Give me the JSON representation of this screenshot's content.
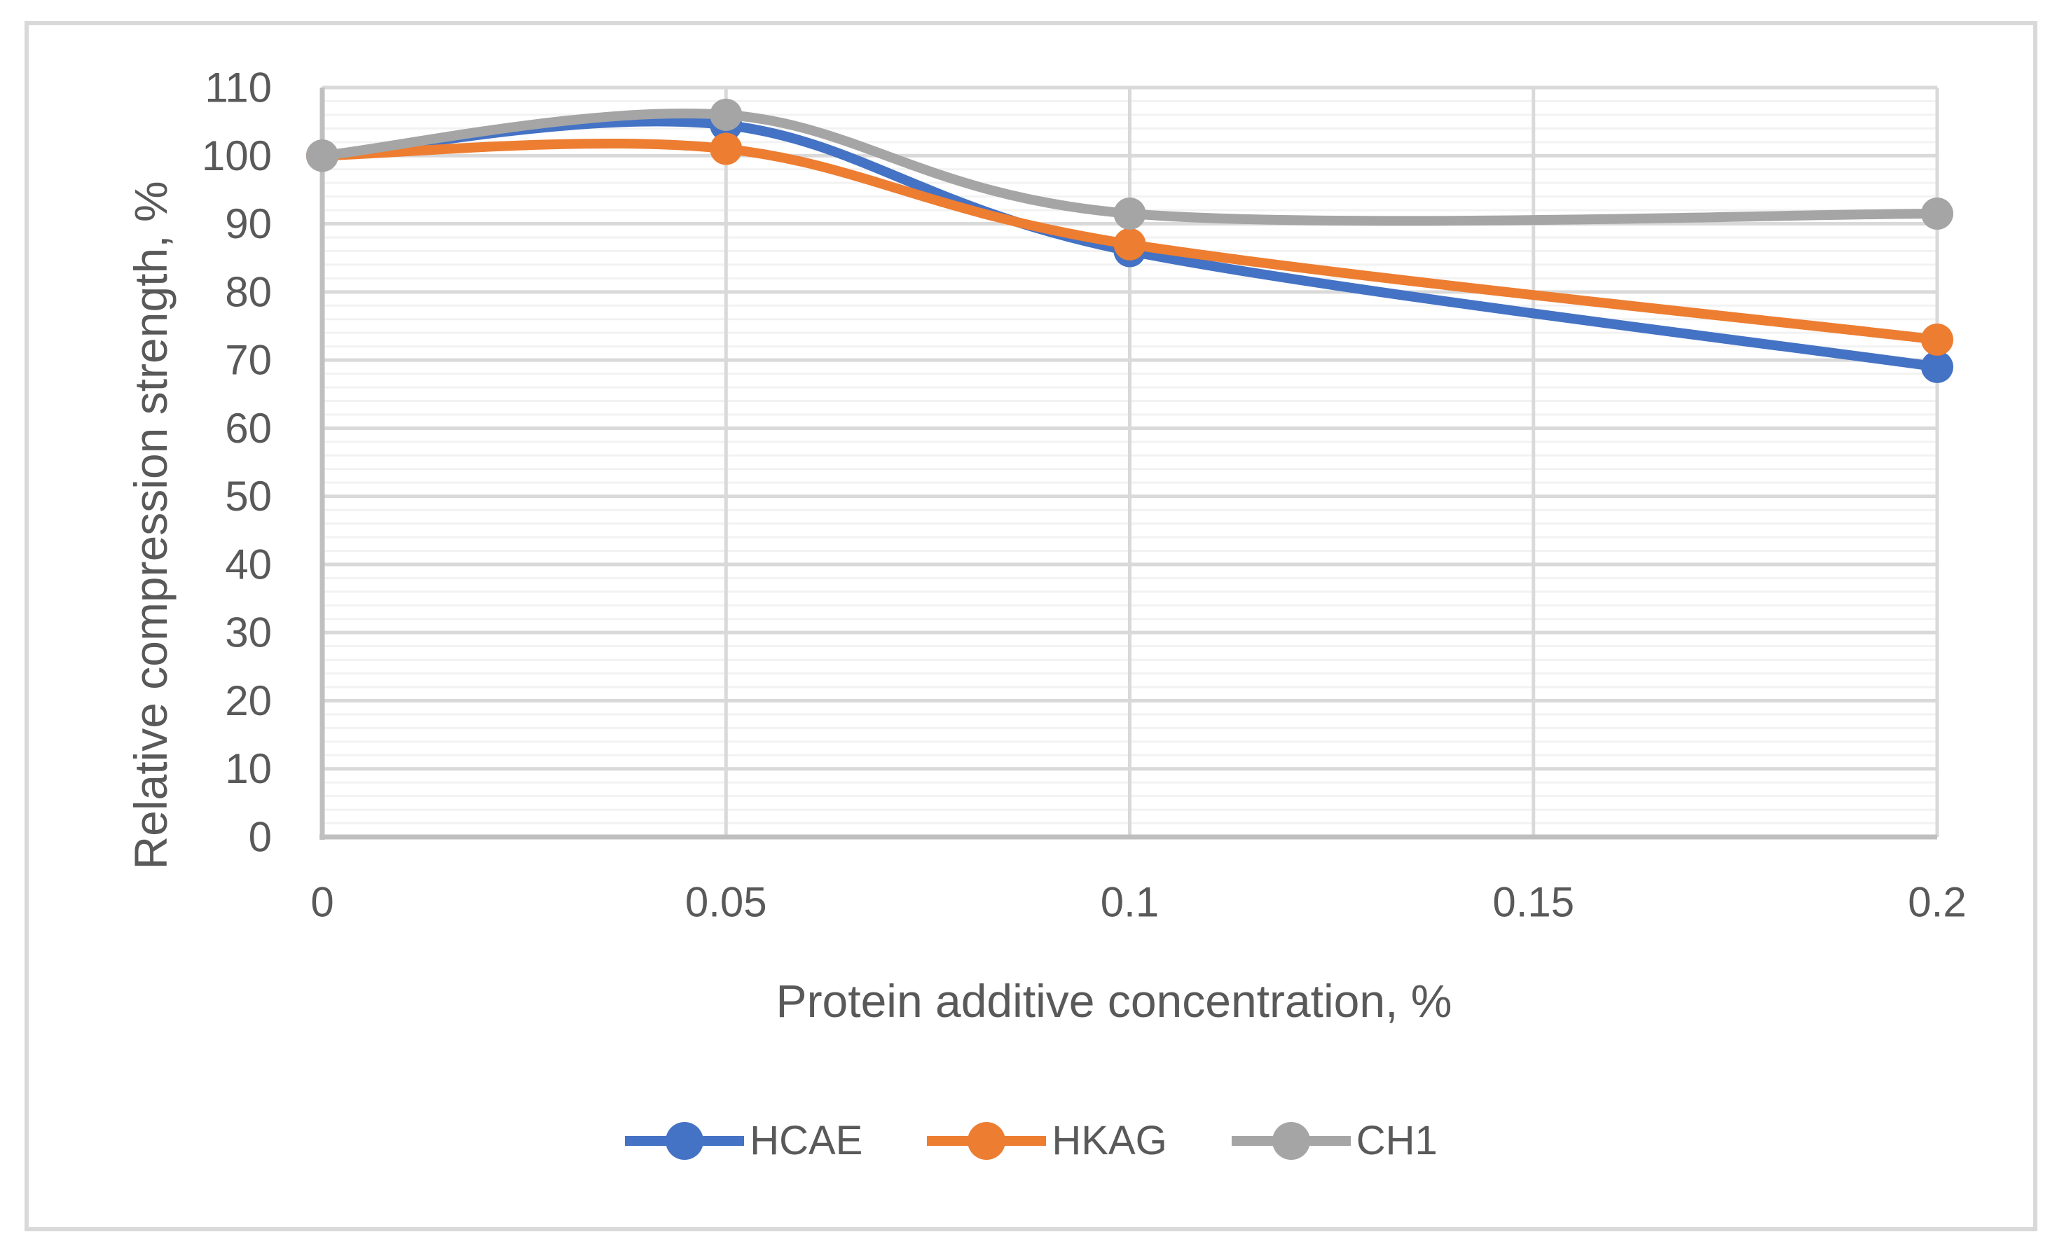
{
  "chart_data": {
    "type": "line",
    "title": "",
    "xlabel": "Protein additive concentration, %",
    "ylabel": "Relative compression strength, %",
    "x": [
      0,
      0.05,
      0.1,
      0.2
    ],
    "series": [
      {
        "name": "HCAE",
        "color": "#4472C4",
        "values": [
          100,
          104.5,
          86,
          69
        ]
      },
      {
        "name": "HKAG",
        "color": "#ED7D31",
        "values": [
          100,
          101,
          87,
          73
        ]
      },
      {
        "name": "CH1",
        "color": "#A5A5A5",
        "values": [
          100,
          106,
          91.5,
          91.5
        ]
      }
    ],
    "x_ticks": [
      0,
      0.05,
      0.1,
      0.15,
      0.2
    ],
    "x_tick_labels": [
      "0",
      "0.05",
      "0.1",
      "0.15",
      "0.2"
    ],
    "y_ticks": [
      0,
      10,
      20,
      30,
      40,
      50,
      60,
      70,
      80,
      90,
      100,
      110
    ],
    "y_tick_labels": [
      "0",
      "10",
      "20",
      "30",
      "40",
      "50",
      "60",
      "70",
      "80",
      "90",
      "100",
      "110"
    ],
    "xlim": [
      0,
      0.2
    ],
    "ylim": [
      0,
      110
    ],
    "y_minor_step": 2,
    "smooth": true,
    "markers": "circle",
    "grid": true,
    "legend_position": "bottom"
  },
  "styles": {
    "background": "#FFFFFF",
    "frame_border": "#D9D9D9",
    "major_gridline": "#D9D9D9",
    "minor_gridline": "#F2F2F2",
    "axis_line": "#BFBFBF",
    "text_color": "#595959"
  }
}
